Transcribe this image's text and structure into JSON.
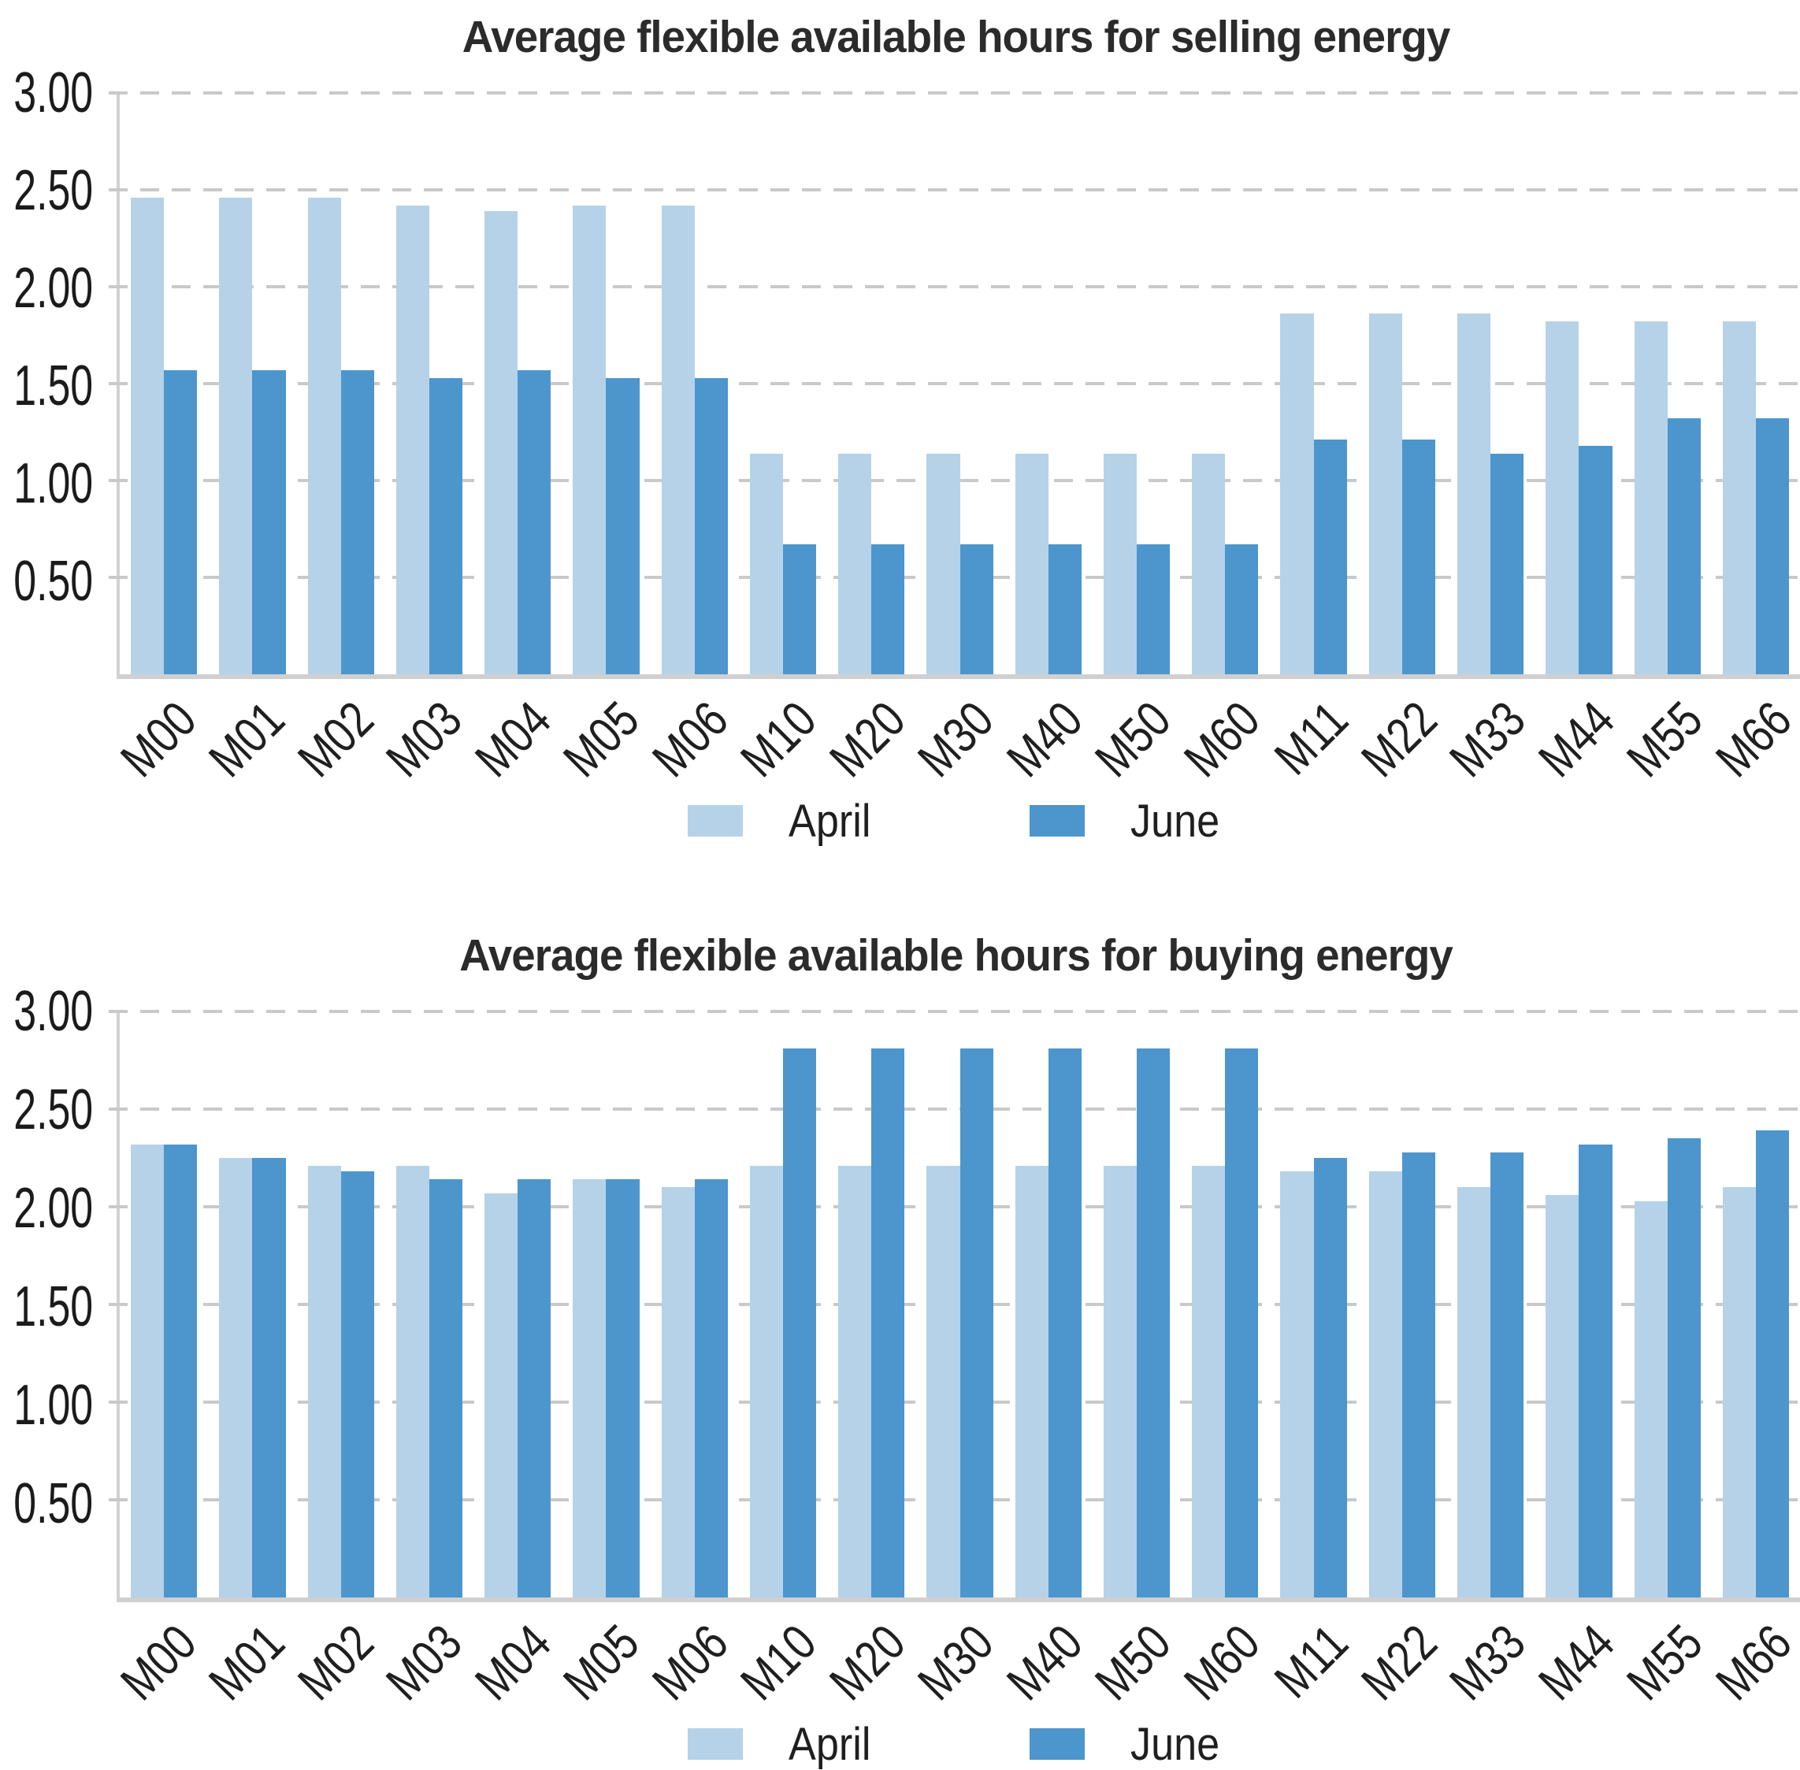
{
  "chart_data": [
    {
      "type": "bar",
      "id": "selling",
      "title": "Average flexible available hours for selling energy",
      "xlabel": "",
      "ylabel": "",
      "ylim": [
        0,
        3
      ],
      "grid": "horizontal-dashed",
      "legend_position": "bottom-center",
      "yticks": [
        {
          "label": "3.00",
          "value": 3.0
        },
        {
          "label": "2.50",
          "value": 2.5
        },
        {
          "label": "2.00",
          "value": 2.0
        },
        {
          "label": "1.50",
          "value": 1.5
        },
        {
          "label": "1.00",
          "value": 1.0
        },
        {
          "label": "0.50",
          "value": 0.5
        }
      ],
      "categories": [
        "M00",
        "M01",
        "M02",
        "M03",
        "M04",
        "M05",
        "M06",
        "M10",
        "M20",
        "M30",
        "M40",
        "M50",
        "M60",
        "M11",
        "M22",
        "M33",
        "M44",
        "M55",
        "M66"
      ],
      "series": [
        {
          "name": "April",
          "color": "#b5d2e9",
          "values": [
            2.46,
            2.46,
            2.46,
            2.42,
            2.39,
            2.42,
            2.42,
            1.14,
            1.14,
            1.14,
            1.14,
            1.14,
            1.14,
            1.86,
            1.86,
            1.86,
            1.82,
            1.82,
            1.82
          ]
        },
        {
          "name": "June",
          "color": "#4c96cd",
          "values": [
            1.57,
            1.57,
            1.57,
            1.53,
            1.57,
            1.53,
            1.53,
            0.67,
            0.67,
            0.67,
            0.67,
            0.67,
            0.67,
            1.21,
            1.21,
            1.14,
            1.18,
            1.32,
            1.32
          ]
        }
      ]
    },
    {
      "type": "bar",
      "id": "buying",
      "title": "Average flexible available hours for buying energy",
      "xlabel": "",
      "ylabel": "",
      "ylim": [
        0,
        3
      ],
      "grid": "horizontal-dashed",
      "legend_position": "bottom-center",
      "yticks": [
        {
          "label": "3.00",
          "value": 3.0
        },
        {
          "label": "2.50",
          "value": 2.5
        },
        {
          "label": "2.00",
          "value": 2.0
        },
        {
          "label": "1.50",
          "value": 1.5
        },
        {
          "label": "1.00",
          "value": 1.0
        },
        {
          "label": "0.50",
          "value": 0.5
        }
      ],
      "categories": [
        "M00",
        "M01",
        "M02",
        "M03",
        "M04",
        "M05",
        "M06",
        "M10",
        "M20",
        "M30",
        "M40",
        "M50",
        "M60",
        "M11",
        "M22",
        "M33",
        "M44",
        "M55",
        "M66"
      ],
      "series": [
        {
          "name": "April",
          "color": "#b5d2e9",
          "values": [
            2.32,
            2.25,
            2.21,
            2.21,
            2.07,
            2.14,
            2.1,
            2.21,
            2.21,
            2.21,
            2.21,
            2.21,
            2.21,
            2.18,
            2.18,
            2.1,
            2.06,
            2.03,
            2.1
          ]
        },
        {
          "name": "June",
          "color": "#4c96cd",
          "values": [
            2.32,
            2.25,
            2.18,
            2.14,
            2.14,
            2.14,
            2.14,
            2.81,
            2.81,
            2.81,
            2.81,
            2.81,
            2.81,
            2.25,
            2.28,
            2.28,
            2.32,
            2.35,
            2.39
          ]
        }
      ]
    }
  ]
}
